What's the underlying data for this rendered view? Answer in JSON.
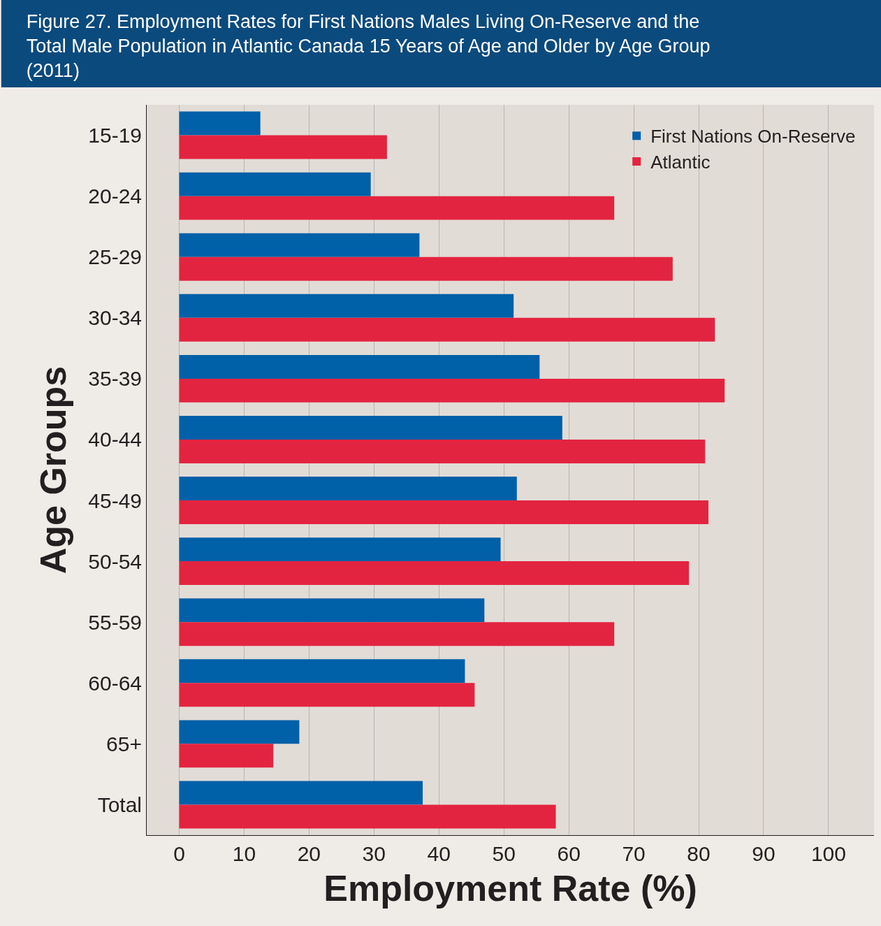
{
  "chart_data": {
    "type": "bar",
    "orientation": "horizontal",
    "title": "Figure 27. Employment Rates for First Nations Males Living On-Reserve and the Total Male Population in Atlantic Canada 15 Years of Age and Older by Age Group (2011)",
    "xlabel": "Employment Rate (%)",
    "ylabel": "Age Groups",
    "categories": [
      "15-19",
      "20-24",
      "25-29",
      "30-34",
      "35-39",
      "40-44",
      "45-49",
      "50-54",
      "55-59",
      "60-64",
      "65+",
      "Total"
    ],
    "series": [
      {
        "name": "First Nations On-Reserve",
        "color": "#0060a8",
        "values": [
          12.5,
          29.5,
          37,
          51.5,
          55.5,
          59,
          52,
          49.5,
          47,
          44,
          18.5,
          37.5
        ]
      },
      {
        "name": "Atlantic",
        "color": "#e32440",
        "values": [
          32,
          67,
          76,
          82.5,
          84,
          81,
          81.5,
          78.5,
          67,
          45.5,
          14.5,
          58
        ]
      }
    ],
    "xlim": [
      -5,
      107
    ],
    "xticks": [
      0,
      10,
      20,
      30,
      40,
      50,
      60,
      70,
      80,
      90,
      100
    ],
    "grid": "x",
    "legend": "top right"
  }
}
